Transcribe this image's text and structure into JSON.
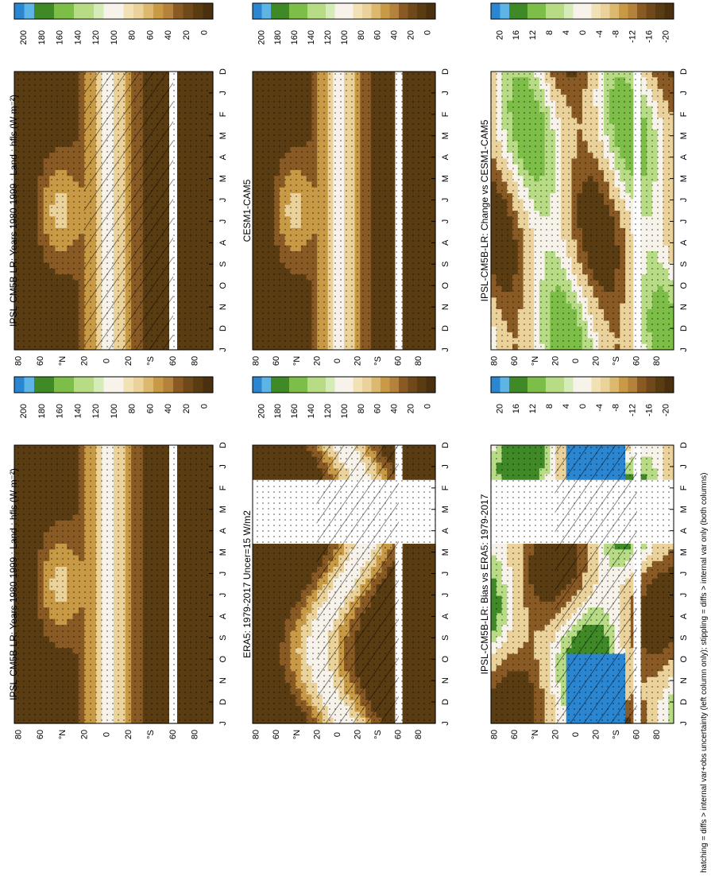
{
  "figure": {
    "footnote": "hatching = diffs > internal var+obs uncertainty (left column only); stippling = diffs > internal var only (both columns)",
    "month_labels": [
      "D",
      "J",
      "F",
      "M",
      "A",
      "M",
      "J",
      "J",
      "A",
      "S",
      "O",
      "N",
      "D",
      "J"
    ],
    "lat_labels": [
      "80",
      "60",
      "°N",
      "20",
      "0",
      "20",
      "°S",
      "60",
      "80"
    ],
    "colors": {
      "dark_brown": "#5a3c13",
      "mid_brown": "#8a5a25",
      "tan": "#c99a45",
      "light_tan": "#ead29a",
      "near_white": "#f7f3ea",
      "light_green": "#b7dc85",
      "mid_green": "#7dbe48",
      "dark_green": "#3f8a27",
      "blue": "#2b86d1",
      "light_blue": "#5fb4e6"
    }
  },
  "chart_data": [
    {
      "type": "heatmap",
      "title": "IPSL-CM5B-LR: Years 1980-1999 : Land : hfls (W m⁻²)",
      "x": [
        "D",
        "J",
        "F",
        "M",
        "A",
        "M",
        "J",
        "J",
        "A",
        "S",
        "O",
        "N",
        "D",
        "J"
      ],
      "y": [
        "80",
        "60",
        "°N",
        "20",
        "0",
        "20",
        "°S",
        "60",
        "80"
      ],
      "colorbar": {
        "ticks": [
          "200",
          "180",
          "160",
          "140",
          "120",
          "100",
          "80",
          "60",
          "40",
          "20",
          "0"
        ],
        "range": [
          0,
          200
        ]
      },
      "hatching": true,
      "stippling": true
    },
    {
      "type": "heatmap",
      "title": "IPSL-CM5B-LR: Years 1980-1999 : Land : hfls (W m⁻²)",
      "x": [
        "D",
        "J",
        "F",
        "M",
        "A",
        "M",
        "J",
        "J",
        "A",
        "S",
        "O",
        "N",
        "D",
        "J"
      ],
      "y": [
        "80",
        "60",
        "°N",
        "20",
        "0",
        "20",
        "°S",
        "60",
        "80"
      ],
      "colorbar": {
        "ticks": [
          "200",
          "180",
          "160",
          "140",
          "120",
          "100",
          "80",
          "60",
          "40",
          "20",
          "0"
        ],
        "range": [
          0,
          200
        ]
      },
      "hatching": false,
      "stippling": true
    },
    {
      "type": "heatmap",
      "title": "ERA5: 1979-2017 Uncer=15 W/m2",
      "x": [
        "D",
        "J",
        "F",
        "M",
        "A",
        "M",
        "J",
        "J",
        "A",
        "S",
        "O",
        "N",
        "D",
        "J"
      ],
      "y": [
        "80",
        "60",
        "°N",
        "20",
        "0",
        "20",
        "°S",
        "60",
        "80"
      ],
      "colorbar": {
        "ticks": [
          "200",
          "180",
          "160",
          "140",
          "120",
          "100",
          "80",
          "60",
          "40",
          "20",
          "0"
        ],
        "range": [
          0,
          200
        ]
      },
      "missing_months": [
        "F",
        "M",
        "A"
      ],
      "hatching": true,
      "stippling": true
    },
    {
      "type": "heatmap",
      "title": "CESM1-CAM5",
      "x": [
        "D",
        "J",
        "F",
        "M",
        "A",
        "M",
        "J",
        "J",
        "A",
        "S",
        "O",
        "N",
        "D",
        "J"
      ],
      "y": [
        "80",
        "60",
        "°N",
        "20",
        "0",
        "20",
        "°S",
        "60",
        "80"
      ],
      "colorbar": {
        "ticks": [
          "200",
          "180",
          "160",
          "140",
          "120",
          "100",
          "80",
          "60",
          "40",
          "20",
          "0"
        ],
        "range": [
          0,
          200
        ]
      },
      "hatching": false,
      "stippling": true
    },
    {
      "type": "heatmap",
      "title": "IPSL-CM5B-LR: Bias vs ERA5: 1979-2017",
      "x": [
        "D",
        "J",
        "F",
        "M",
        "A",
        "M",
        "J",
        "J",
        "A",
        "S",
        "O",
        "N",
        "D",
        "J"
      ],
      "y": [
        "80",
        "60",
        "°N",
        "20",
        "0",
        "20",
        "°S",
        "60",
        "80"
      ],
      "colorbar": {
        "ticks": [
          "20",
          "16",
          "12",
          "8",
          "4",
          "0",
          "-4",
          "-8",
          "-12",
          "-16",
          "-20"
        ],
        "range": [
          -20,
          20
        ]
      },
      "missing_months": [
        "F",
        "M",
        "A"
      ],
      "hatching": true,
      "stippling": true
    },
    {
      "type": "heatmap",
      "title": "IPSL-CM5B-LR: Change vs CESM1-CAM5",
      "x": [
        "D",
        "J",
        "F",
        "M",
        "A",
        "M",
        "J",
        "J",
        "A",
        "S",
        "O",
        "N",
        "D",
        "J"
      ],
      "y": [
        "80",
        "60",
        "°N",
        "20",
        "0",
        "20",
        "°S",
        "60",
        "80"
      ],
      "colorbar": {
        "ticks": [
          "20",
          "16",
          "12",
          "8",
          "4",
          "0",
          "-4",
          "-8",
          "-12",
          "-16",
          "-20"
        ],
        "range": [
          -20,
          20
        ]
      },
      "hatching": false,
      "stippling": true
    }
  ]
}
